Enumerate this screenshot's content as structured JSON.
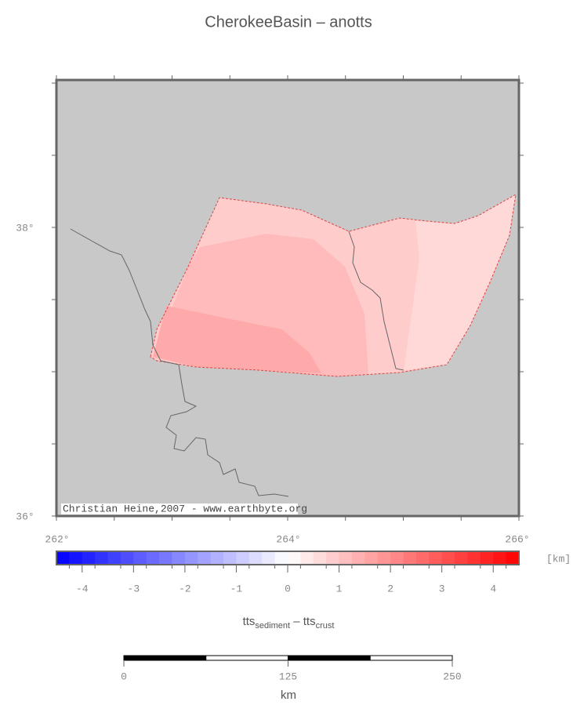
{
  "title": "CherokeeBasin – anotts",
  "map": {
    "lon_labels": [
      "262°",
      "264°",
      "266°"
    ],
    "lat_labels": [
      "38°",
      "36°"
    ],
    "credit": "Christian Heine,2007 - www.earthbyte.org"
  },
  "colorbar": {
    "range": [
      -4.5,
      4.5
    ],
    "ticks": [
      -4,
      -3,
      -2,
      -1,
      0,
      1,
      2,
      3,
      4
    ],
    "unit": "[km]",
    "label": {
      "main1": "tts",
      "sub1": "sediment",
      "main2": " – tts",
      "sub2": "crust"
    }
  },
  "scalebar": {
    "ticks": [
      0,
      125,
      250
    ],
    "unit": "km"
  }
}
